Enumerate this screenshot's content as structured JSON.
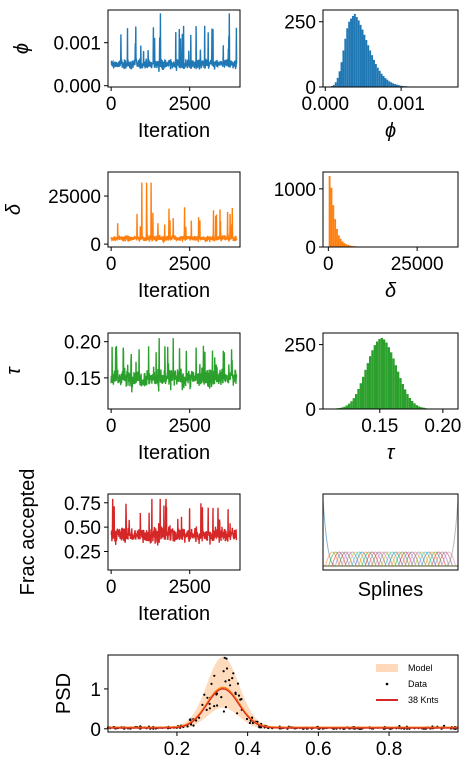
{
  "chart_data": [
    {
      "id": "phi_trace",
      "type": "line",
      "ylabel": "ϕ",
      "xlabel": "Iteration",
      "xlim": [
        -100,
        4100
      ],
      "ylim": [
        -3e-05,
        0.00176
      ],
      "xticks": [
        {
          "v": 0,
          "label": "0"
        },
        {
          "v": 2500,
          "label": "2500"
        }
      ],
      "yticks": [
        {
          "v": 0,
          "label": "0.000"
        },
        {
          "v": 0.001,
          "label": "0.001"
        }
      ],
      "color": "#1f77b4",
      "trace": {
        "n": 4000,
        "base": 0.0005,
        "spread": 0.00012,
        "low": 4e-05,
        "spike": 0.0011,
        "max": 0.00168
      }
    },
    {
      "id": "phi_hist",
      "type": "bar",
      "xlabel": "ϕ",
      "xlim": [
        -3e-05,
        0.00175
      ],
      "ylim": [
        0,
        295
      ],
      "xticks": [
        {
          "v": 0,
          "label": "0.000"
        },
        {
          "v": 0.001,
          "label": "0.001"
        }
      ],
      "yticks": [
        {
          "v": 0,
          "label": "0"
        },
        {
          "v": 250,
          "label": "250"
        }
      ],
      "color": "#1f77b4",
      "hist": {
        "start": 5e-05,
        "width": 2.52e-05,
        "counts": [
          2,
          4,
          8,
          18,
          35,
          60,
          95,
          140,
          185,
          225,
          250,
          262,
          272,
          280,
          268,
          255,
          238,
          220,
          200,
          180,
          160,
          140,
          122,
          104,
          88,
          74,
          62,
          51,
          42,
          34,
          28,
          22,
          18,
          14,
          11,
          9,
          7,
          5,
          4,
          3,
          3,
          2,
          2,
          1,
          1,
          1,
          1,
          0,
          1,
          0,
          1,
          0,
          0,
          1
        ]
      }
    },
    {
      "id": "delta_trace",
      "type": "line",
      "ylabel": "δ",
      "xlabel": "Iteration",
      "xlim": [
        -100,
        4100
      ],
      "ylim": [
        -1500,
        37500
      ],
      "xticks": [
        {
          "v": 0,
          "label": "0"
        },
        {
          "v": 2500,
          "label": "2500"
        }
      ],
      "yticks": [
        {
          "v": 0,
          "label": "0"
        },
        {
          "v": 25000,
          "label": "25000"
        }
      ],
      "color": "#ff7f0e",
      "trace": {
        "n": 4000,
        "base": 3000,
        "spread": 1500,
        "low": 200,
        "spike": 14000,
        "max": 32000
      }
    },
    {
      "id": "delta_hist",
      "type": "bar",
      "xlabel": "δ",
      "xlim": [
        -1500,
        36500
      ],
      "ylim": [
        0,
        1290
      ],
      "xticks": [
        {
          "v": 0,
          "label": "0"
        },
        {
          "v": 25000,
          "label": "25000"
        }
      ],
      "yticks": [
        {
          "v": 0,
          "label": "0"
        },
        {
          "v": 1000,
          "label": "1000"
        }
      ],
      "color": "#ff7f0e",
      "hist": {
        "start": 100,
        "width": 520,
        "counts": [
          1220,
          1020,
          720,
          480,
          310,
          200,
          140,
          95,
          66,
          48,
          35,
          26,
          20,
          15,
          12,
          10,
          8,
          6,
          5,
          4,
          4,
          3,
          3,
          2,
          2,
          2,
          2,
          1,
          1,
          1,
          1,
          1,
          1,
          1,
          1,
          1,
          1,
          1,
          1,
          1,
          1,
          1,
          1,
          1,
          1,
          1,
          1,
          1,
          1,
          1,
          1,
          1,
          1,
          1,
          1,
          1,
          1,
          1,
          1,
          1,
          1,
          1
        ]
      }
    },
    {
      "id": "tau_trace",
      "type": "line",
      "ylabel": "τ",
      "xlabel": "Iteration",
      "xlim": [
        -100,
        4100
      ],
      "ylim": [
        0.107,
        0.212
      ],
      "xticks": [
        {
          "v": 0,
          "label": "0"
        },
        {
          "v": 2500,
          "label": "2500"
        }
      ],
      "yticks": [
        {
          "v": 0.15,
          "label": "0.15"
        },
        {
          "v": 0.2,
          "label": "0.20"
        }
      ],
      "color": "#2ca02c",
      "trace": {
        "n": 4000,
        "base": 0.15,
        "spread": 0.013,
        "low": 0.113,
        "spike": 0.18,
        "max": 0.205
      }
    },
    {
      "id": "tau_hist",
      "type": "bar",
      "xlabel": "τ",
      "xlim": [
        0.105,
        0.212
      ],
      "ylim": [
        0,
        295
      ],
      "xticks": [
        {
          "v": 0.15,
          "label": "0.15"
        },
        {
          "v": 0.2,
          "label": "0.20"
        }
      ],
      "yticks": [
        {
          "v": 0,
          "label": "0"
        },
        {
          "v": 250,
          "label": "250"
        }
      ],
      "color": "#2ca02c",
      "hist": {
        "start": 0.11,
        "width": 0.00185,
        "counts": [
          1,
          1,
          2,
          3,
          4,
          6,
          9,
          14,
          21,
          30,
          42,
          58,
          78,
          100,
          125,
          152,
          178,
          205,
          228,
          248,
          262,
          272,
          276,
          270,
          258,
          240,
          220,
          196,
          170,
          145,
          120,
          97,
          76,
          58,
          43,
          31,
          22,
          15,
          10,
          7,
          5,
          3,
          2,
          2,
          1,
          1,
          1,
          1,
          1,
          1,
          1,
          1
        ]
      }
    },
    {
      "id": "acc_trace",
      "type": "line",
      "ylabel": "Frac accepted",
      "xlabel": "Iteration",
      "xlim": [
        -100,
        4100
      ],
      "ylim": [
        0.06,
        0.84
      ],
      "xticks": [
        {
          "v": 0,
          "label": "0"
        },
        {
          "v": 2500,
          "label": "2500"
        }
      ],
      "yticks": [
        {
          "v": 0.25,
          "label": "0.25"
        },
        {
          "v": 0.5,
          "label": "0.50"
        },
        {
          "v": 0.75,
          "label": "0.75"
        }
      ],
      "color": "#d62728",
      "trace": {
        "n": 4000,
        "base": 0.42,
        "spread": 0.08,
        "low": 0.12,
        "spike": 0.65,
        "max": 0.79
      }
    },
    {
      "id": "splines",
      "type": "line",
      "xlabel": "Splines",
      "n_basis": 38,
      "colors": [
        "#1f77b4",
        "#ff7f0e",
        "#2ca02c",
        "#d62728",
        "#9467bd",
        "#8c564b",
        "#e377c2",
        "#7f7f7f",
        "#bcbd22",
        "#17becf"
      ]
    },
    {
      "id": "psd",
      "type": "scatter",
      "ylabel": "PSD",
      "xlim": [
        0.005,
        0.995
      ],
      "ylim": [
        -0.08,
        1.85
      ],
      "xticks": [
        {
          "v": 0.2,
          "label": "0.2"
        },
        {
          "v": 0.4,
          "label": "0.4"
        },
        {
          "v": 0.6,
          "label": "0.6"
        },
        {
          "v": 0.8,
          "label": "0.8"
        }
      ],
      "yticks": [
        {
          "v": 0,
          "label": "0"
        },
        {
          "v": 1,
          "label": "1"
        }
      ],
      "legend": [
        {
          "label": "Model",
          "color": "#ffcfa8",
          "kind": "patch"
        },
        {
          "label": "Data",
          "color": "#000000",
          "kind": "dot"
        },
        {
          "label": "38 Knts",
          "color": "#d62728",
          "kind": "line"
        }
      ],
      "legend_position": "top-right",
      "model_center": 0.33,
      "model_width": 0.045,
      "model_peak": 1.0
    }
  ]
}
